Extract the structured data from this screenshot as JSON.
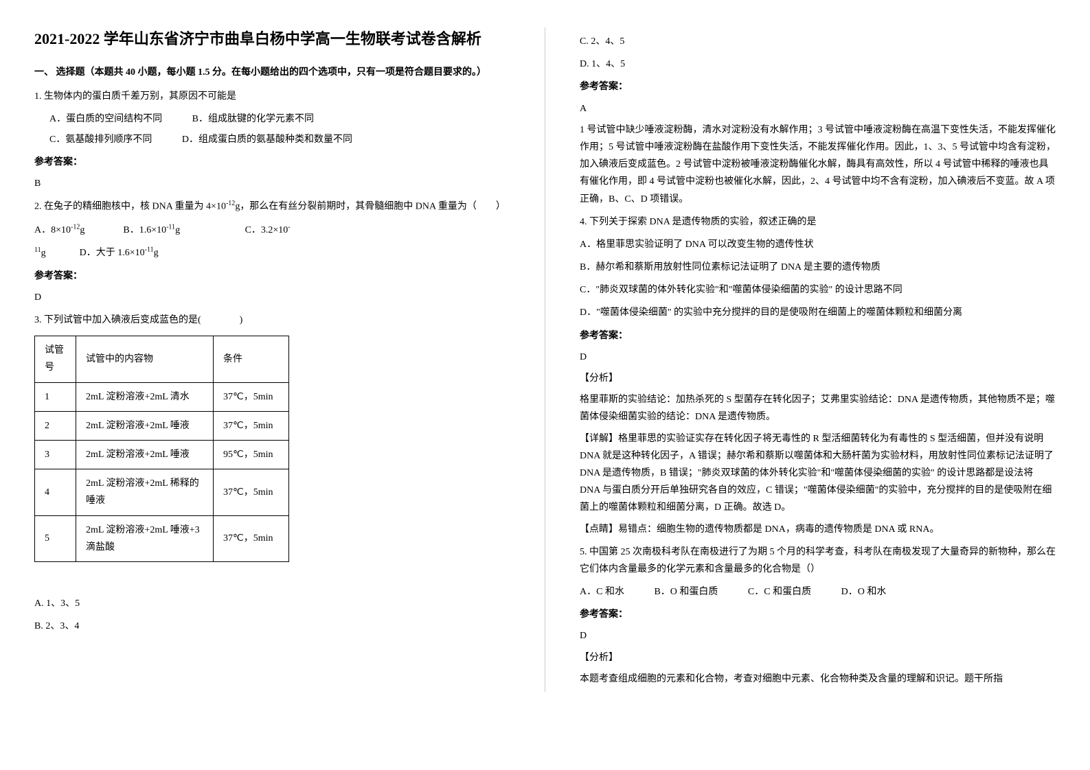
{
  "title": "2021-2022 学年山东省济宁市曲阜白杨中学高一生物联考试卷含解析",
  "section1_header": "一、 选择题（本题共 40 小题，每小题 1.5 分。在每小题给出的四个选项中，只有一项是符合题目要求的。）",
  "q1": {
    "stem": "1. 生物体内的蛋白质千差万别，其原因不可能是",
    "optA": "A．蛋白质的空间结构不同",
    "optB": "B．组成肽键的化学元素不同",
    "optC": "C．氨基酸排列顺序不同",
    "optD": "D．组成蛋白质的氨基酸种类和数量不同",
    "answer_label": "参考答案：",
    "answer": "B"
  },
  "q2": {
    "stem_a": "2. 在兔子的精细胞核中，核 DNA 重量为 4×10",
    "stem_sup1": "-12",
    "stem_b": "g，那么在有丝分裂前期时，其骨髓细胞中 DNA 重量为（　　）",
    "optA_a": "A．8×10",
    "optA_sup": "-12",
    "optA_b": "g",
    "optB_a": "B．1.6×10",
    "optB_sup": "-11",
    "optB_b": "g",
    "optC_a": "C．3.2×10",
    "optC_sup": "-",
    "optC_cont_sup": "11",
    "optC_cont": "g",
    "optD_a": "D．大于 1.6×10",
    "optD_sup": "-11",
    "optD_b": "g",
    "answer_label": "参考答案：",
    "answer": "D"
  },
  "q3": {
    "stem": "3. 下列试管中加入碘液后变成蓝色的是(　　　　)",
    "table": {
      "headers": [
        "试管号",
        "试管中的内容物",
        "条件"
      ],
      "rows": [
        [
          "1",
          "2mL 淀粉溶液+2mL 清水",
          "37℃，5min"
        ],
        [
          "2",
          "2mL 淀粉溶液+2mL 唾液",
          "37℃，5min"
        ],
        [
          "3",
          "2mL 淀粉溶液+2mL 唾液",
          "95℃，5min"
        ],
        [
          "4",
          "2mL 淀粉溶液+2mL 稀释的唾液",
          "37℃，5min"
        ],
        [
          "5",
          "2mL 淀粉溶液+2mL 唾液+3滴盐酸",
          "37℃，5min"
        ]
      ],
      "col_widths": [
        "60px",
        "200px",
        "110px"
      ]
    },
    "optA": "A. 1、3、5",
    "optB": "B. 2、3、4",
    "optC": "C. 2、4、5",
    "optD": "D. 1、4、5",
    "answer_label": "参考答案：",
    "answer": "A",
    "analysis": "1 号试管中缺少唾液淀粉酶，清水对淀粉没有水解作用；3 号试管中唾液淀粉酶在高温下变性失活，不能发挥催化作用；5 号试管中唾液淀粉酶在盐酸作用下变性失活，不能发挥催化作用。因此，1、3、5 号试管中均含有淀粉，加入碘液后变成蓝色。2 号试管中淀粉被唾液淀粉酶催化水解，酶具有高效性，所以 4 号试管中稀释的唾液也具有催化作用，即 4 号试管中淀粉也被催化水解，因此，2、4 号试管中均不含有淀粉，加入碘液后不变蓝。故 A 项正确，B、C、D 项错误。"
  },
  "q4": {
    "stem": "4. 下列关于探索 DNA 是遗传物质的实验，叙述正确的是",
    "optA": "A．格里菲思实验证明了 DNA 可以改变生物的遗传性状",
    "optB": "B．赫尔希和蔡斯用放射性同位素标记法证明了 DNA 是主要的遗传物质",
    "optC": "C．\"肺炎双球菌的体外转化实验\"和\"噬菌体侵染细菌的实验\" 的设计思路不同",
    "optD": "D．\"噬菌体侵染细菌\" 的实验中充分搅拌的目的是使吸附在细菌上的噬菌体颗粒和细菌分离",
    "answer_label": "参考答案：",
    "answer": "D",
    "analysis_label": "【分析】",
    "analysis1": "格里菲斯的实验结论：加热杀死的 S 型菌存在转化因子；艾弗里实验结论：DNA 是遗传物质，其他物质不是；噬菌体侵染细菌实验的结论：DNA 是遗传物质。",
    "analysis2": "【详解】格里菲思的实验证实存在转化因子将无毒性的 R 型活细菌转化为有毒性的 S 型活细菌，但并没有说明 DNA 就是这种转化因子，A 错误；赫尔希和蔡斯以噬菌体和大肠杆菌为实验材料，用放射性同位素标记法证明了 DNA 是遗传物质，B 错误；\"肺炎双球菌的体外转化实验\"和\"噬菌体侵染细菌的实验\" 的设计思路都是设法将 DNA 与蛋白质分开后单独研究各自的效应，C 错误；\"噬菌体侵染细菌\"的实验中，充分搅拌的目的是使吸附在细菌上的噬菌体颗粒和细菌分离，D 正确。故选 D。",
    "analysis3": "【点睛】易错点：细胞生物的遗传物质都是 DNA，病毒的遗传物质是 DNA 或 RNA。"
  },
  "q5": {
    "stem": "5. 中国第 25 次南极科考队在南极进行了为期 5 个月的科学考查，科考队在南极发现了大量奇异的新物种，那么在它们体内含量最多的化学元素和含量最多的化合物是（）",
    "optA": "A．C 和水",
    "optB": "B．O 和蛋白质",
    "optC": "C．C 和蛋白质",
    "optD": "D．O 和水",
    "answer_label": "参考答案：",
    "answer": "D",
    "analysis_label": "【分析】",
    "analysis": "本题考查组成细胞的元素和化合物，考查对细胞中元素、化合物种类及含量的理解和识记。题干所指"
  }
}
